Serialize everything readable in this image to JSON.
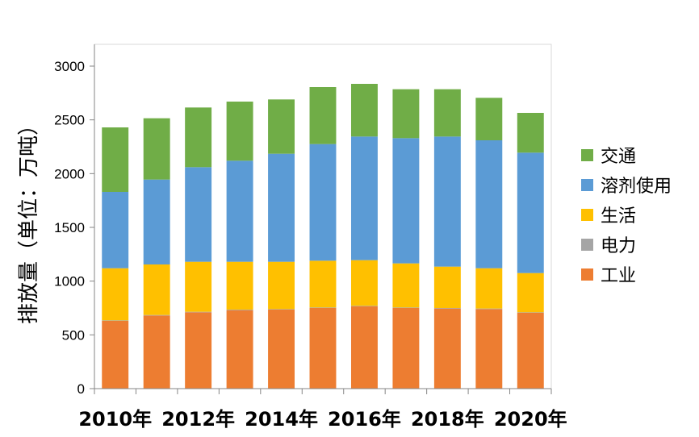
{
  "chart_data": {
    "type": "bar",
    "stacked": true,
    "title": "",
    "xlabel": "",
    "ylabel": "排放量（单位：万吨）",
    "ylim": [
      0,
      3000
    ],
    "yticks": [
      "0",
      "500",
      "1000",
      "1500",
      "2000",
      "2500",
      "3000"
    ],
    "ytick_values": [
      0,
      500,
      1000,
      1500,
      2000,
      2500,
      3000
    ],
    "categories": [
      "2010年",
      "2011年",
      "2012年",
      "2013年",
      "2014年",
      "2015年",
      "2016年",
      "2017年",
      "2018年",
      "2019年",
      "2020年"
    ],
    "x_tick_labels": [
      "2010年",
      "2012年",
      "2014年",
      "2016年",
      "2018年",
      "2020年"
    ],
    "grid": false,
    "legend_position": "right",
    "series": [
      {
        "name": "工业",
        "color": "#ED7D31",
        "values": [
          630,
          680,
          710,
          730,
          735,
          750,
          765,
          750,
          745,
          740,
          705
        ]
      },
      {
        "name": "电力",
        "color": "#A5A5A5",
        "values": [
          5,
          5,
          5,
          5,
          5,
          5,
          5,
          5,
          5,
          5,
          5
        ]
      },
      {
        "name": "生活",
        "color": "#FFC000",
        "values": [
          485,
          470,
          465,
          445,
          440,
          435,
          425,
          410,
          385,
          375,
          365
        ]
      },
      {
        "name": "溶剂使用",
        "color": "#5B9BD5",
        "values": [
          710,
          790,
          880,
          940,
          1005,
          1085,
          1150,
          1165,
          1210,
          1190,
          1120
        ]
      },
      {
        "name": "交通",
        "color": "#70AD47",
        "values": [
          600,
          570,
          555,
          550,
          505,
          530,
          490,
          455,
          440,
          395,
          370
        ]
      }
    ]
  }
}
